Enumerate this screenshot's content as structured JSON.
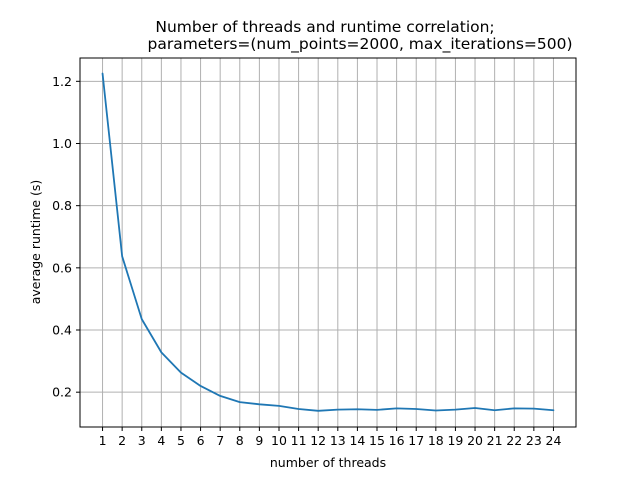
{
  "chart_data": {
    "type": "line",
    "title_lines": [
      "Number of threads and runtime correlation;",
      "parameters=(num_points=2000, max_iterations=500)"
    ],
    "xlabel": "number of threads",
    "ylabel": "average runtime (s)",
    "x": [
      1,
      2,
      3,
      4,
      5,
      6,
      7,
      8,
      9,
      10,
      11,
      12,
      13,
      14,
      15,
      16,
      17,
      18,
      19,
      20,
      21,
      22,
      23,
      24
    ],
    "xticks": [
      1,
      2,
      3,
      4,
      5,
      6,
      7,
      8,
      9,
      10,
      11,
      12,
      13,
      14,
      15,
      16,
      17,
      18,
      19,
      20,
      21,
      22,
      23,
      24
    ],
    "xlim": [
      -0.15,
      25.15
    ],
    "yticks": [
      0.2,
      0.4,
      0.6,
      0.8,
      1.0,
      1.2
    ],
    "ytick_labels": [
      "0.2",
      "0.4",
      "0.6",
      "0.8",
      "1.0",
      "1.2"
    ],
    "ylim": [
      0.088,
      1.275
    ],
    "grid": true,
    "series": [
      {
        "color": "#1f77b4",
        "values": [
          1.225,
          0.637,
          0.435,
          0.328,
          0.263,
          0.22,
          0.188,
          0.168,
          0.161,
          0.156,
          0.146,
          0.14,
          0.144,
          0.145,
          0.143,
          0.148,
          0.146,
          0.141,
          0.144,
          0.149,
          0.142,
          0.148,
          0.147,
          0.142
        ]
      }
    ]
  }
}
